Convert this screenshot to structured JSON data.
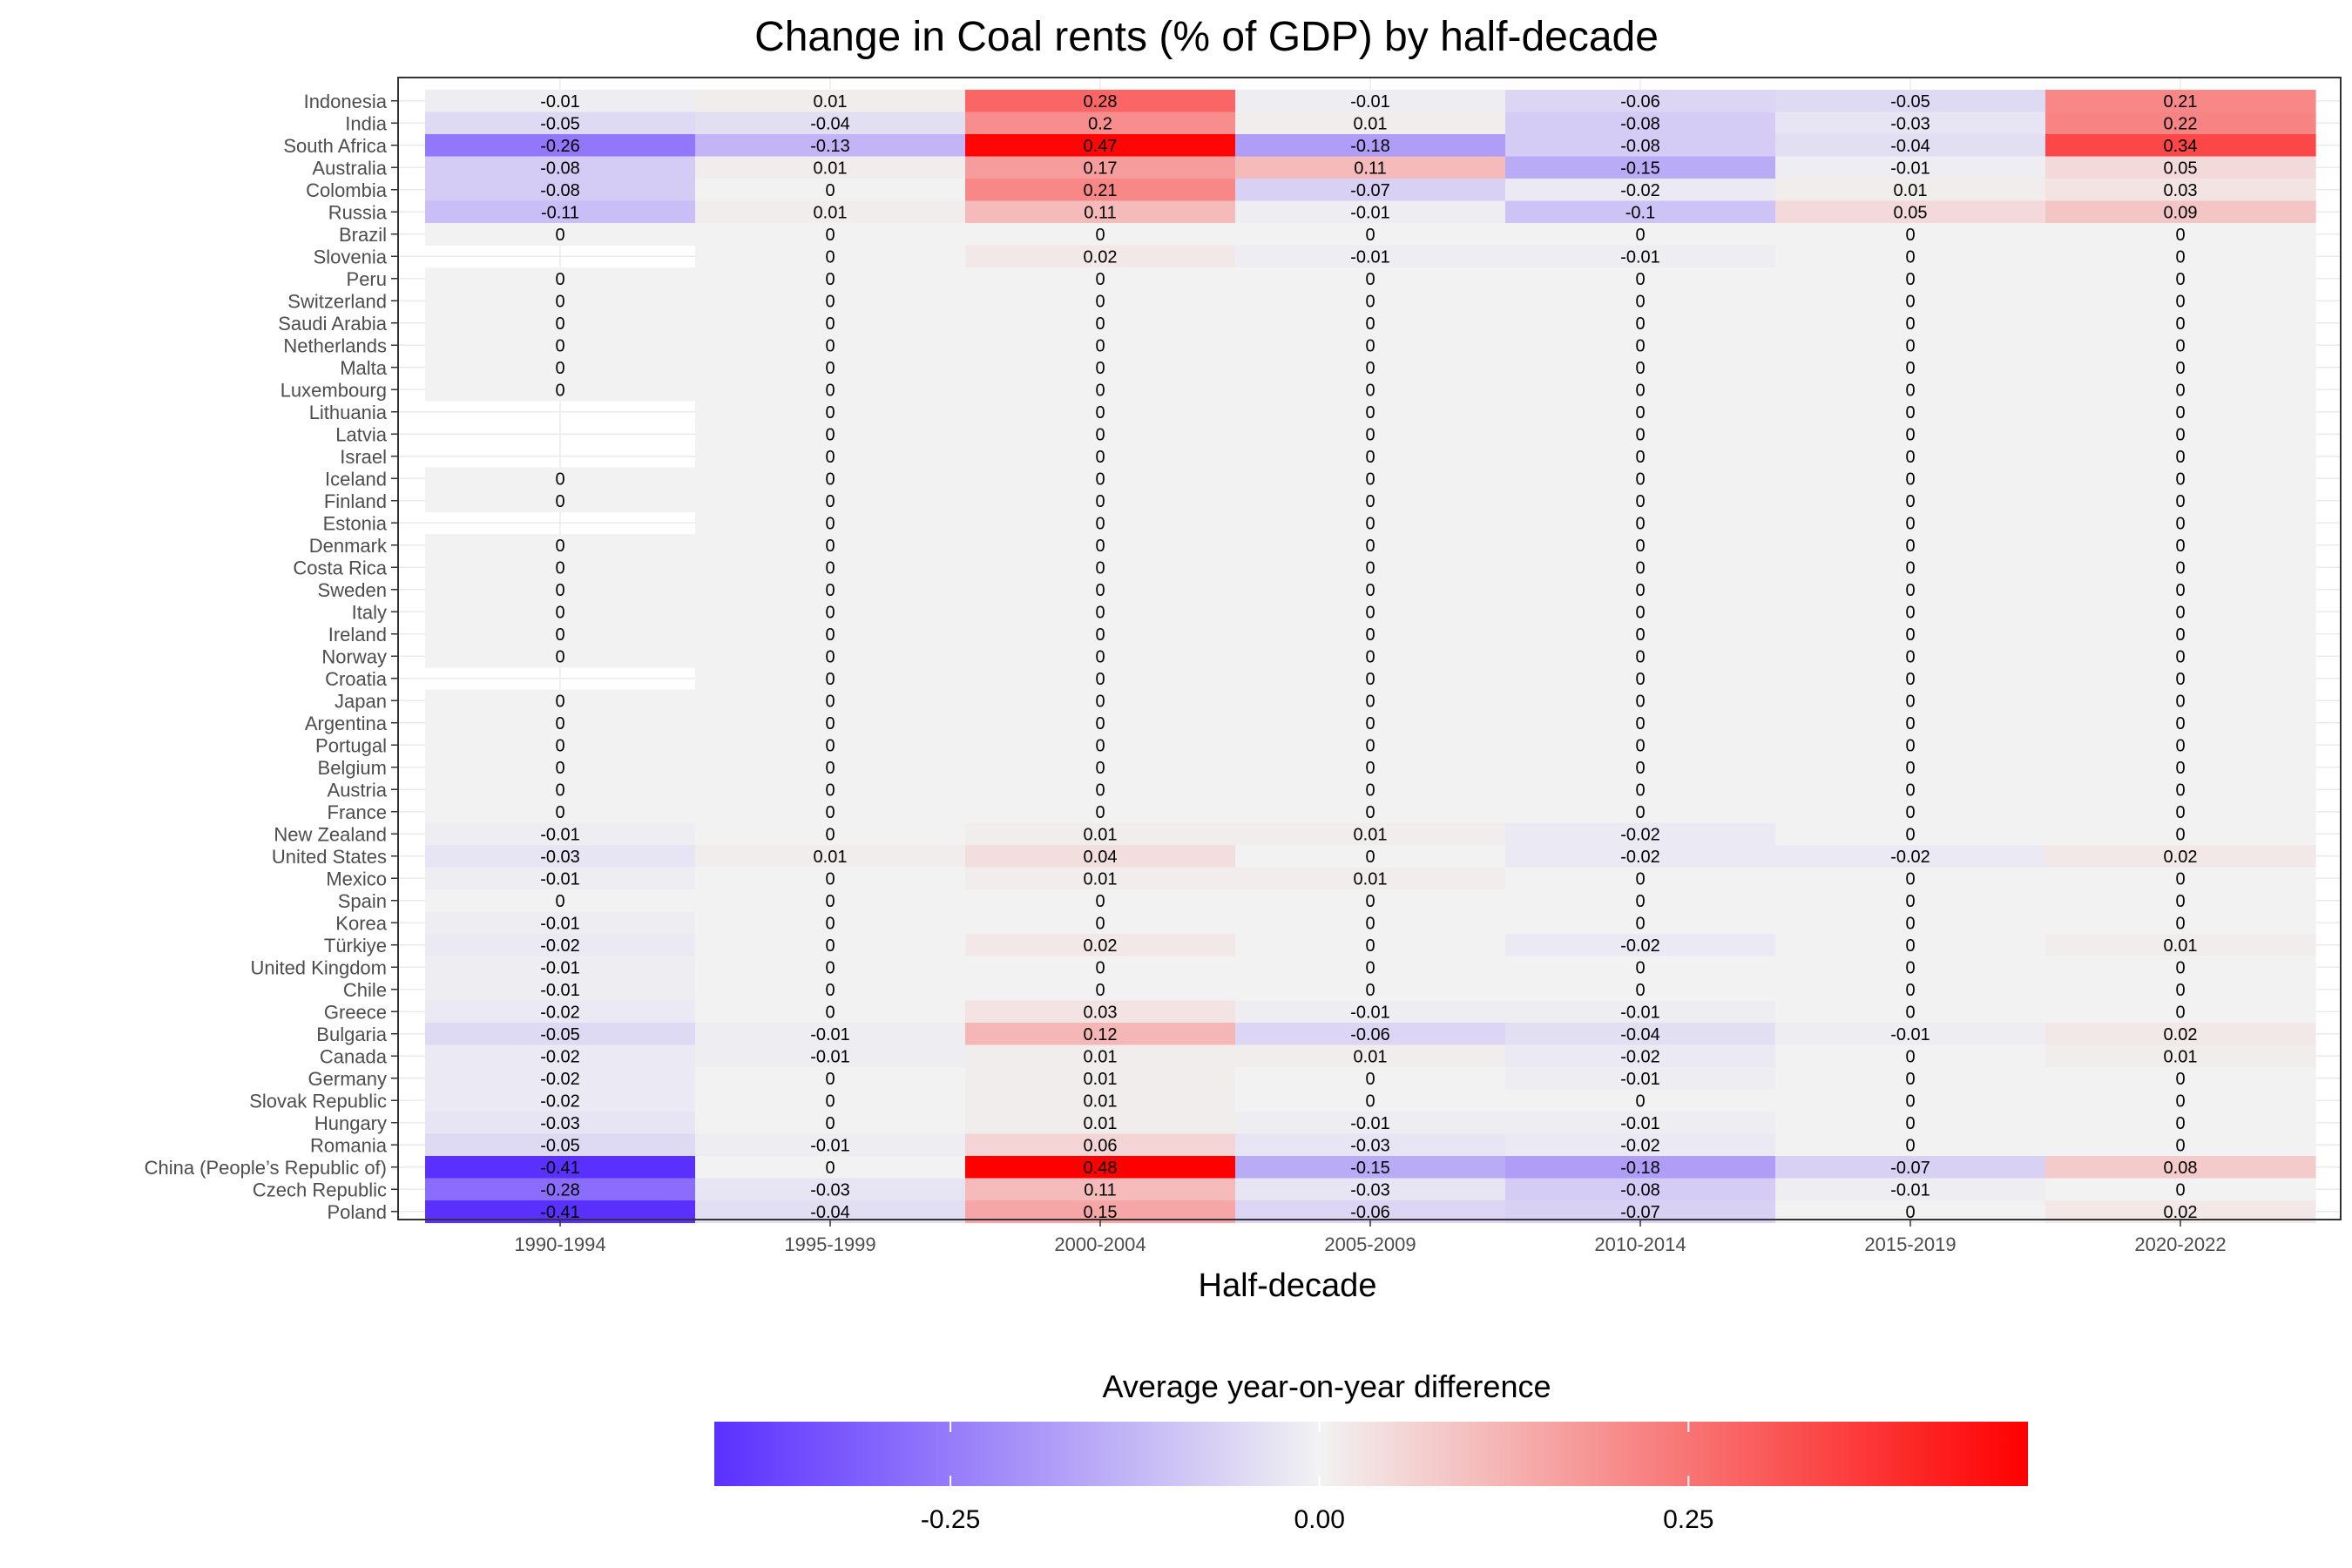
{
  "chart_data": {
    "type": "heatmap",
    "title": "Change in Coal rents (% of GDP) by half-decade",
    "xlabel": "Half-decade",
    "ylabel": "",
    "x_categories": [
      "1990-1994",
      "1995-1999",
      "2000-2004",
      "2005-2009",
      "2010-2014",
      "2015-2019",
      "2020-2022"
    ],
    "y_categories": [
      "Indonesia",
      "India",
      "South Africa",
      "Australia",
      "Colombia",
      "Russia",
      "Brazil",
      "Slovenia",
      "Peru",
      "Switzerland",
      "Saudi Arabia",
      "Netherlands",
      "Malta",
      "Luxembourg",
      "Lithuania",
      "Latvia",
      "Israel",
      "Iceland",
      "Finland",
      "Estonia",
      "Denmark",
      "Costa Rica",
      "Sweden",
      "Italy",
      "Ireland",
      "Norway",
      "Croatia",
      "Japan",
      "Argentina",
      "Portugal",
      "Belgium",
      "Austria",
      "France",
      "New Zealand",
      "United States",
      "Mexico",
      "Spain",
      "Korea",
      "Türkiye",
      "United Kingdom",
      "Chile",
      "Greece",
      "Bulgaria",
      "Canada",
      "Germany",
      "Slovak Republic",
      "Hungary",
      "Romania",
      "China (People’s Republic of)",
      "Czech Republic",
      "Poland"
    ],
    "values": [
      [
        -0.01,
        0.01,
        0.28,
        -0.01,
        -0.06,
        -0.05,
        0.21
      ],
      [
        -0.05,
        -0.04,
        0.2,
        0.01,
        -0.08,
        -0.03,
        0.22
      ],
      [
        -0.26,
        -0.13,
        0.47,
        -0.18,
        -0.08,
        -0.04,
        0.34
      ],
      [
        -0.08,
        0.01,
        0.17,
        0.11,
        -0.15,
        -0.01,
        0.05
      ],
      [
        -0.08,
        0,
        0.21,
        -0.07,
        -0.02,
        0.01,
        0.03
      ],
      [
        -0.11,
        0.01,
        0.11,
        -0.01,
        -0.1,
        0.05,
        0.09
      ],
      [
        0,
        0,
        0,
        0,
        0,
        0,
        0
      ],
      [
        null,
        0,
        0.02,
        -0.01,
        -0.01,
        0,
        0
      ],
      [
        0,
        0,
        0,
        0,
        0,
        0,
        0
      ],
      [
        0,
        0,
        0,
        0,
        0,
        0,
        0
      ],
      [
        0,
        0,
        0,
        0,
        0,
        0,
        0
      ],
      [
        0,
        0,
        0,
        0,
        0,
        0,
        0
      ],
      [
        0,
        0,
        0,
        0,
        0,
        0,
        0
      ],
      [
        0,
        0,
        0,
        0,
        0,
        0,
        0
      ],
      [
        null,
        0,
        0,
        0,
        0,
        0,
        0
      ],
      [
        null,
        0,
        0,
        0,
        0,
        0,
        0
      ],
      [
        null,
        0,
        0,
        0,
        0,
        0,
        0
      ],
      [
        0,
        0,
        0,
        0,
        0,
        0,
        0
      ],
      [
        0,
        0,
        0,
        0,
        0,
        0,
        0
      ],
      [
        null,
        0,
        0,
        0,
        0,
        0,
        0
      ],
      [
        0,
        0,
        0,
        0,
        0,
        0,
        0
      ],
      [
        0,
        0,
        0,
        0,
        0,
        0,
        0
      ],
      [
        0,
        0,
        0,
        0,
        0,
        0,
        0
      ],
      [
        0,
        0,
        0,
        0,
        0,
        0,
        0
      ],
      [
        0,
        0,
        0,
        0,
        0,
        0,
        0
      ],
      [
        0,
        0,
        0,
        0,
        0,
        0,
        0
      ],
      [
        null,
        0,
        0,
        0,
        0,
        0,
        0
      ],
      [
        0,
        0,
        0,
        0,
        0,
        0,
        0
      ],
      [
        0,
        0,
        0,
        0,
        0,
        0,
        0
      ],
      [
        0,
        0,
        0,
        0,
        0,
        0,
        0
      ],
      [
        0,
        0,
        0,
        0,
        0,
        0,
        0
      ],
      [
        0,
        0,
        0,
        0,
        0,
        0,
        0
      ],
      [
        0,
        0,
        0,
        0,
        0,
        0,
        0
      ],
      [
        -0.01,
        0,
        0.01,
        0.01,
        -0.02,
        0,
        0
      ],
      [
        -0.03,
        0.01,
        0.04,
        0,
        -0.02,
        -0.02,
        0.02
      ],
      [
        -0.01,
        0,
        0.01,
        0.01,
        0,
        0,
        0
      ],
      [
        0,
        0,
        0,
        0,
        0,
        0,
        0
      ],
      [
        -0.01,
        0,
        0,
        0,
        0,
        0,
        0
      ],
      [
        -0.02,
        0,
        0.02,
        0,
        -0.02,
        0,
        0.01
      ],
      [
        -0.01,
        0,
        0,
        0,
        0,
        0,
        0
      ],
      [
        -0.01,
        0,
        0,
        0,
        0,
        0,
        0
      ],
      [
        -0.02,
        0,
        0.03,
        -0.01,
        -0.01,
        0,
        0
      ],
      [
        -0.05,
        -0.01,
        0.12,
        -0.06,
        -0.04,
        -0.01,
        0.02
      ],
      [
        -0.02,
        -0.01,
        0.01,
        0.01,
        -0.02,
        0,
        0.01
      ],
      [
        -0.02,
        0,
        0.01,
        0,
        -0.01,
        0,
        0
      ],
      [
        -0.02,
        0,
        0.01,
        0,
        0,
        0,
        0
      ],
      [
        -0.03,
        0,
        0.01,
        -0.01,
        -0.01,
        0,
        0
      ],
      [
        -0.05,
        -0.01,
        0.06,
        -0.03,
        -0.02,
        0,
        0
      ],
      [
        -0.41,
        0,
        0.48,
        -0.15,
        -0.18,
        -0.07,
        0.08
      ],
      [
        -0.28,
        -0.03,
        0.11,
        -0.03,
        -0.08,
        -0.01,
        0
      ],
      [
        -0.41,
        -0.04,
        0.15,
        -0.06,
        -0.07,
        0,
        0.02
      ]
    ],
    "color_scale": {
      "low": "#5a30ff",
      "mid": "#f2f2f2",
      "high": "#ff0000",
      "min": -0.41,
      "max": 0.48,
      "midpoint": 0
    },
    "legend": {
      "title": "Average year-on-year difference",
      "position": "bottom",
      "ticks": [
        -0.25,
        0,
        0.25
      ],
      "tick_labels": [
        "-0.25",
        "0.00",
        "0.25"
      ]
    },
    "grid": true
  }
}
